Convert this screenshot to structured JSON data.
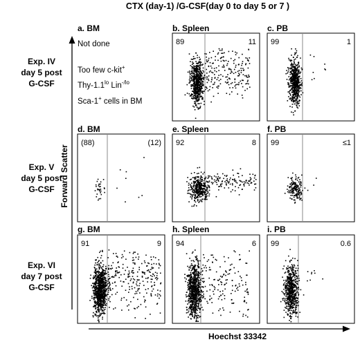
{
  "figure": {
    "title": "CTX (day-1) /G-CSF(day 0 to day 5 or 7 )",
    "x_axis_label": "Hoechst 33342",
    "y_axis_label": "Forward Scatter"
  },
  "rows": [
    {
      "lines": [
        "Exp. IV",
        "day 5 post",
        "G-CSF"
      ]
    },
    {
      "lines": [
        "Exp. V",
        "day 5 post",
        "G-CSF"
      ]
    },
    {
      "lines": [
        "Exp. VI",
        "day 7 post",
        "G-CSF"
      ]
    }
  ],
  "panels": [
    {
      "label": "a.  BM",
      "not_done": true,
      "note": {
        "line1": "Not  done",
        "line2": "Too few c-kit",
        "line2_sup": "+",
        "line3a": "Thy-1.1",
        "line3a_sup": "lo",
        "line3b": " Lin",
        "line3b_sup": "-/lo",
        "line4": "Sca-1",
        "line4_sup": "+",
        "line4b": " cells in BM"
      }
    },
    {
      "label": "b.  Spleen",
      "left": "89",
      "right": "11"
    },
    {
      "label": "c.  PB",
      "left": "99",
      "right": "1"
    },
    {
      "label": "d.  BM",
      "left": "(88)",
      "right": "(12)"
    },
    {
      "label": "e.  Spleen",
      "left": "92",
      "right": "8"
    },
    {
      "label": "f.  PB",
      "left": "99",
      "right": "≤1"
    },
    {
      "label": "g.  BM",
      "left": "91",
      "right": "9"
    },
    {
      "label": "h.  Spleen",
      "left": "94",
      "right": "6"
    },
    {
      "label": "i.  PB",
      "left": "99",
      "right": "0.6"
    }
  ],
  "chart_data": {
    "type": "scatter",
    "title": "CTX (day-1) /G-CSF(day 0 to day 5 or 7 )",
    "xlabel": "Hoechst 33342",
    "ylabel": "Forward Scatter",
    "grid": false,
    "legend": "none",
    "gate_line": "vertical",
    "panels": [
      {
        "id": "a",
        "tissue": "BM",
        "experiment": "Exp. IV",
        "day": "day 5 post",
        "data_shown": false
      },
      {
        "id": "b",
        "tissue": "Spleen",
        "experiment": "Exp. IV",
        "day": "day 5 post",
        "left_percent": 89,
        "right_percent": 11
      },
      {
        "id": "c",
        "tissue": "PB",
        "experiment": "Exp. IV",
        "day": "day 5 post",
        "left_percent": 99,
        "right_percent": 1
      },
      {
        "id": "d",
        "tissue": "BM",
        "experiment": "Exp. V",
        "day": "day 5 post",
        "left_percent": 88,
        "right_percent": 12
      },
      {
        "id": "e",
        "tissue": "Spleen",
        "experiment": "Exp. V",
        "day": "day 5 post",
        "left_percent": 92,
        "right_percent": 8
      },
      {
        "id": "f",
        "tissue": "PB",
        "experiment": "Exp. V",
        "day": "day 5 post",
        "left_percent": 99,
        "right_percent": "≤1"
      },
      {
        "id": "g",
        "tissue": "BM",
        "experiment": "Exp. VI",
        "day": "day 7 post",
        "left_percent": 91,
        "right_percent": 9
      },
      {
        "id": "h",
        "tissue": "Spleen",
        "experiment": "Exp. VI",
        "day": "day 7 post",
        "left_percent": 94,
        "right_percent": 6
      },
      {
        "id": "i",
        "tissue": "PB",
        "experiment": "Exp. VI",
        "day": "day 7 post",
        "left_percent": 99,
        "right_percent": 0.6
      }
    ]
  }
}
